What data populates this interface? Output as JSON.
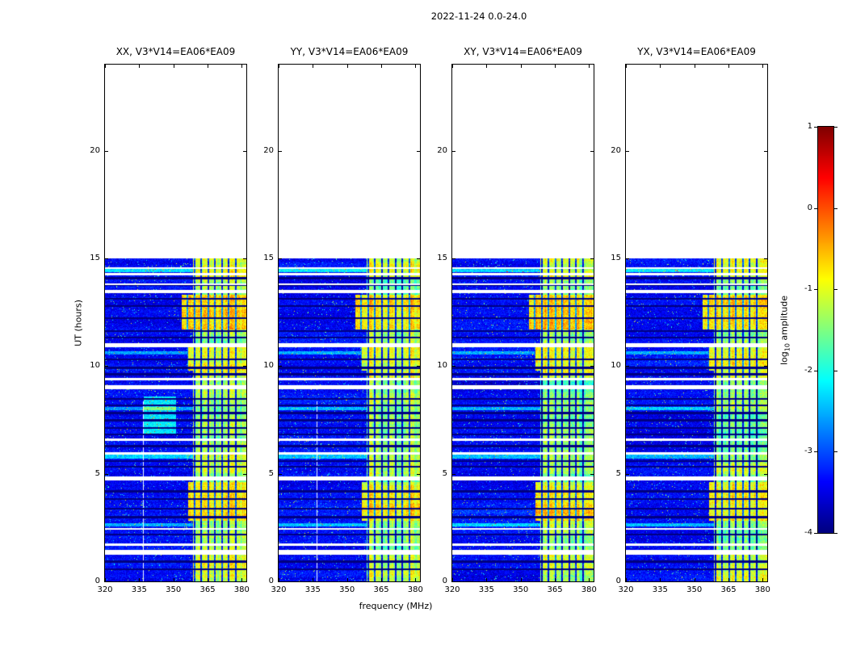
{
  "figure": {
    "title": "2022-11-24 0.0-24.0",
    "xlabel": "frequency (MHz)",
    "ylabel": "UT (hours)",
    "colorbar_label": {
      "prefix": "log",
      "sub": "10",
      "suffix": " amplitude"
    }
  },
  "panels": [
    {
      "id": "XX",
      "title": "XX, V3*V14=EA06*EA09"
    },
    {
      "id": "YY",
      "title": "YY, V3*V14=EA06*EA09"
    },
    {
      "id": "XY",
      "title": "XY, V3*V14=EA06*EA09"
    },
    {
      "id": "YX",
      "title": "YX, V3*V14=EA06*EA09"
    }
  ],
  "axes": {
    "x_ticks": [
      320,
      335,
      350,
      365,
      380
    ],
    "y_ticks": [
      0,
      5,
      10,
      15,
      20
    ],
    "x_range": [
      320,
      382
    ],
    "y_range": [
      0,
      24
    ]
  },
  "colorbar": {
    "ticks": [
      1,
      0,
      -1,
      -2,
      -3,
      -4
    ],
    "range": [
      -4,
      1
    ]
  },
  "chart_data": {
    "type": "heatmap",
    "title": "2022-11-24 0.0-24.0",
    "xlabel": "frequency (MHz)",
    "ylabel": "UT (hours)",
    "colorbar_label": "log10 amplitude",
    "colormap": "jet",
    "value_range": [
      -4,
      1
    ],
    "panels": [
      "XX, V3*V14=EA06*EA09",
      "YY, V3*V14=EA06*EA09",
      "XY, V3*V14=EA06*EA09",
      "YX, V3*V14=EA06*EA09"
    ],
    "x_range_mhz": [
      320,
      382
    ],
    "y_range_hours": [
      0,
      24
    ],
    "data_time_extent_hours": [
      0,
      15
    ],
    "features": {
      "background_level": -3.65,
      "band_start_mhz": 358.5,
      "band_level": -1.45,
      "band_notches_mhz": [
        356.3,
        359.3,
        362.3,
        365.3,
        368.3,
        371.3,
        374.3,
        377.3
      ],
      "notch_halfwidth_mhz": 0.35,
      "band_enhancements": [
        [
          0.0,
          1.35,
          0.3
        ],
        [
          2.8,
          4.6,
          0.55
        ],
        [
          5.0,
          5.95,
          0.25
        ],
        [
          9.45,
          11.05,
          0.4
        ],
        [
          11.7,
          13.3,
          0.78
        ],
        [
          14.15,
          15.0,
          0.35
        ]
      ],
      "wide_band_intervals": [
        [
          2.8,
          4.6,
          356.5
        ],
        [
          9.8,
          10.95,
          356.0
        ],
        [
          11.7,
          13.3,
          353.5
        ]
      ],
      "white_gaps_hours": [
        [
          1.35,
          0.1
        ],
        [
          1.72,
          0.06
        ],
        [
          2.45,
          0.04
        ],
        [
          4.78,
          0.08
        ],
        [
          5.95,
          0.05
        ],
        [
          6.57,
          0.05
        ],
        [
          9.02,
          0.08
        ],
        [
          9.38,
          0.06
        ],
        [
          10.97,
          0.09
        ],
        [
          13.45,
          0.07
        ],
        [
          13.8,
          0.05
        ],
        [
          14.28,
          0.06
        ],
        [
          14.55,
          0.05
        ]
      ],
      "dark_lines_hours": [
        [
          0.55,
          0.04
        ],
        [
          0.92,
          0.04
        ],
        [
          2.18,
          0.05
        ],
        [
          2.98,
          0.04
        ],
        [
          3.38,
          0.04
        ],
        [
          3.82,
          0.05
        ],
        [
          4.18,
          0.04
        ],
        [
          5.32,
          0.05
        ],
        [
          5.58,
          0.04
        ],
        [
          6.28,
          0.05
        ],
        [
          6.82,
          0.04
        ],
        [
          7.12,
          0.04
        ],
        [
          7.48,
          0.05
        ],
        [
          7.82,
          0.04
        ],
        [
          8.18,
          0.05
        ],
        [
          8.48,
          0.04
        ],
        [
          9.62,
          0.05
        ],
        [
          9.92,
          0.04
        ],
        [
          10.32,
          0.04
        ],
        [
          11.32,
          0.05
        ],
        [
          11.62,
          0.04
        ],
        [
          12.22,
          0.04
        ],
        [
          12.78,
          0.04
        ],
        [
          13.12,
          0.05
        ],
        [
          13.78,
          0.04
        ],
        [
          14.08,
          0.05
        ]
      ],
      "green_rows_hours": [
        [
          2.62,
          0.08,
          0.9
        ],
        [
          5.8,
          0.1,
          1.0
        ],
        [
          8.02,
          0.08,
          0.9
        ],
        [
          10.62,
          0.07,
          0.8
        ],
        [
          14.45,
          0.1,
          1.1
        ]
      ],
      "cyan_patch": {
        "panel": 0,
        "hours": [
          6.85,
          8.6
        ],
        "mhz": [
          337,
          351
        ],
        "amp": 1.15
      },
      "white_columns": [
        {
          "panels": [
            0,
            1
          ],
          "mhz": 336.9,
          "hours": [
            0,
            8.35
          ]
        }
      ],
      "panel_band_offsets": [
        0.05,
        0,
        0,
        -0.05
      ]
    }
  }
}
